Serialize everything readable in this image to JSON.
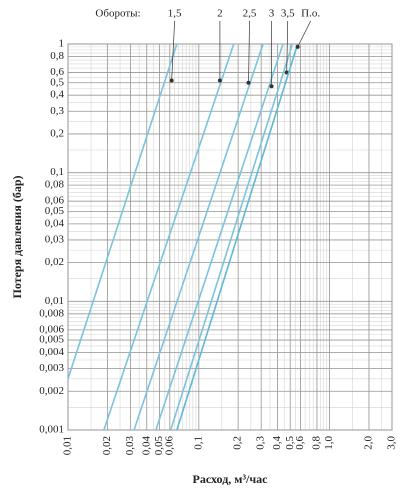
{
  "chart_data": {
    "type": "line",
    "legend_title": "Обороты:",
    "xlabel": "Расход, м³/час",
    "ylabel": "Потеря давления (бар)",
    "xscale": "log",
    "yscale": "log",
    "grid": true,
    "xlim": [
      0.01,
      3
    ],
    "ylim": [
      0.001,
      1
    ],
    "xticks": [
      {
        "value": 0.01,
        "label": "0,01"
      },
      {
        "value": 0.02,
        "label": "0,02"
      },
      {
        "value": 0.03,
        "label": "0,03"
      },
      {
        "value": 0.04,
        "label": "0,04"
      },
      {
        "value": 0.05,
        "label": "0,05"
      },
      {
        "value": 0.06,
        "label": "0,06"
      },
      {
        "value": 0.1,
        "label": "0,1"
      },
      {
        "value": 0.2,
        "label": "0,2"
      },
      {
        "value": 0.3,
        "label": "0,3"
      },
      {
        "value": 0.4,
        "label": "0,4"
      },
      {
        "value": 0.5,
        "label": "0,5"
      },
      {
        "value": 0.6,
        "label": "0,6"
      },
      {
        "value": 0.8,
        "label": "0,8"
      },
      {
        "value": 1,
        "label": "1,0"
      },
      {
        "value": 2,
        "label": "2,0"
      },
      {
        "value": 3,
        "label": "3,0"
      }
    ],
    "yticks": [
      1,
      {
        "value": 0.8,
        "label": "0,8"
      },
      {
        "value": 0.6,
        "label": "0,6"
      },
      {
        "value": 0.5,
        "label": "0,5"
      },
      {
        "value": 0.4,
        "label": "0,4"
      },
      {
        "value": 0.3,
        "label": "0,3"
      },
      {
        "value": 0.2,
        "label": "0,2"
      },
      {
        "value": 0.1,
        "label": "0,1"
      },
      {
        "value": 0.08,
        "label": "0,08"
      },
      {
        "value": 0.06,
        "label": "0,06"
      },
      {
        "value": 0.05,
        "label": "0,05"
      },
      {
        "value": 0.04,
        "label": "0,04"
      },
      {
        "value": 0.03,
        "label": "0,03"
      },
      {
        "value": 0.02,
        "label": "0,02"
      },
      {
        "value": 0.01,
        "label": "0,01"
      },
      {
        "value": 0.008,
        "label": "0,008"
      },
      {
        "value": 0.006,
        "label": "0,006"
      },
      {
        "value": 0.005,
        "label": "0,005"
      },
      {
        "value": 0.004,
        "label": "0,004"
      },
      {
        "value": 0.003,
        "label": "0,003"
      },
      {
        "value": 0.002,
        "label": "0,002"
      },
      {
        "value": 0.001,
        "label": "0,001"
      }
    ],
    "series": [
      {
        "name": "1,5",
        "color": "#7cc3dc",
        "x": [
          0.01,
          0.068
        ],
        "values": [
          0.0025,
          1
        ],
        "marker": [
          0.062,
          0.52
        ]
      },
      {
        "name": "2",
        "color": "#7cc3dc",
        "x": [
          0.0188,
          0.185
        ],
        "values": [
          0.001,
          1
        ],
        "marker": [
          0.145,
          0.52
        ]
      },
      {
        "name": "2,5",
        "color": "#7cc3dc",
        "x": [
          0.032,
          0.31
        ],
        "values": [
          0.001,
          1
        ],
        "marker": [
          0.24,
          0.5
        ]
      },
      {
        "name": "3",
        "color": "#7cc3dc",
        "x": [
          0.047,
          0.44
        ],
        "values": [
          0.001,
          1
        ],
        "marker": [
          0.36,
          0.47
        ]
      },
      {
        "name": "3,5",
        "color": "#7cc3dc",
        "x": [
          0.061,
          0.52
        ],
        "values": [
          0.001,
          1
        ],
        "marker": [
          0.47,
          0.6
        ]
      },
      {
        "name": "П.о.",
        "color": "#5fb8d6",
        "x": [
          0.068,
          0.57
        ],
        "values": [
          0.001,
          1
        ],
        "marker": [
          0.57,
          0.95
        ]
      }
    ]
  }
}
